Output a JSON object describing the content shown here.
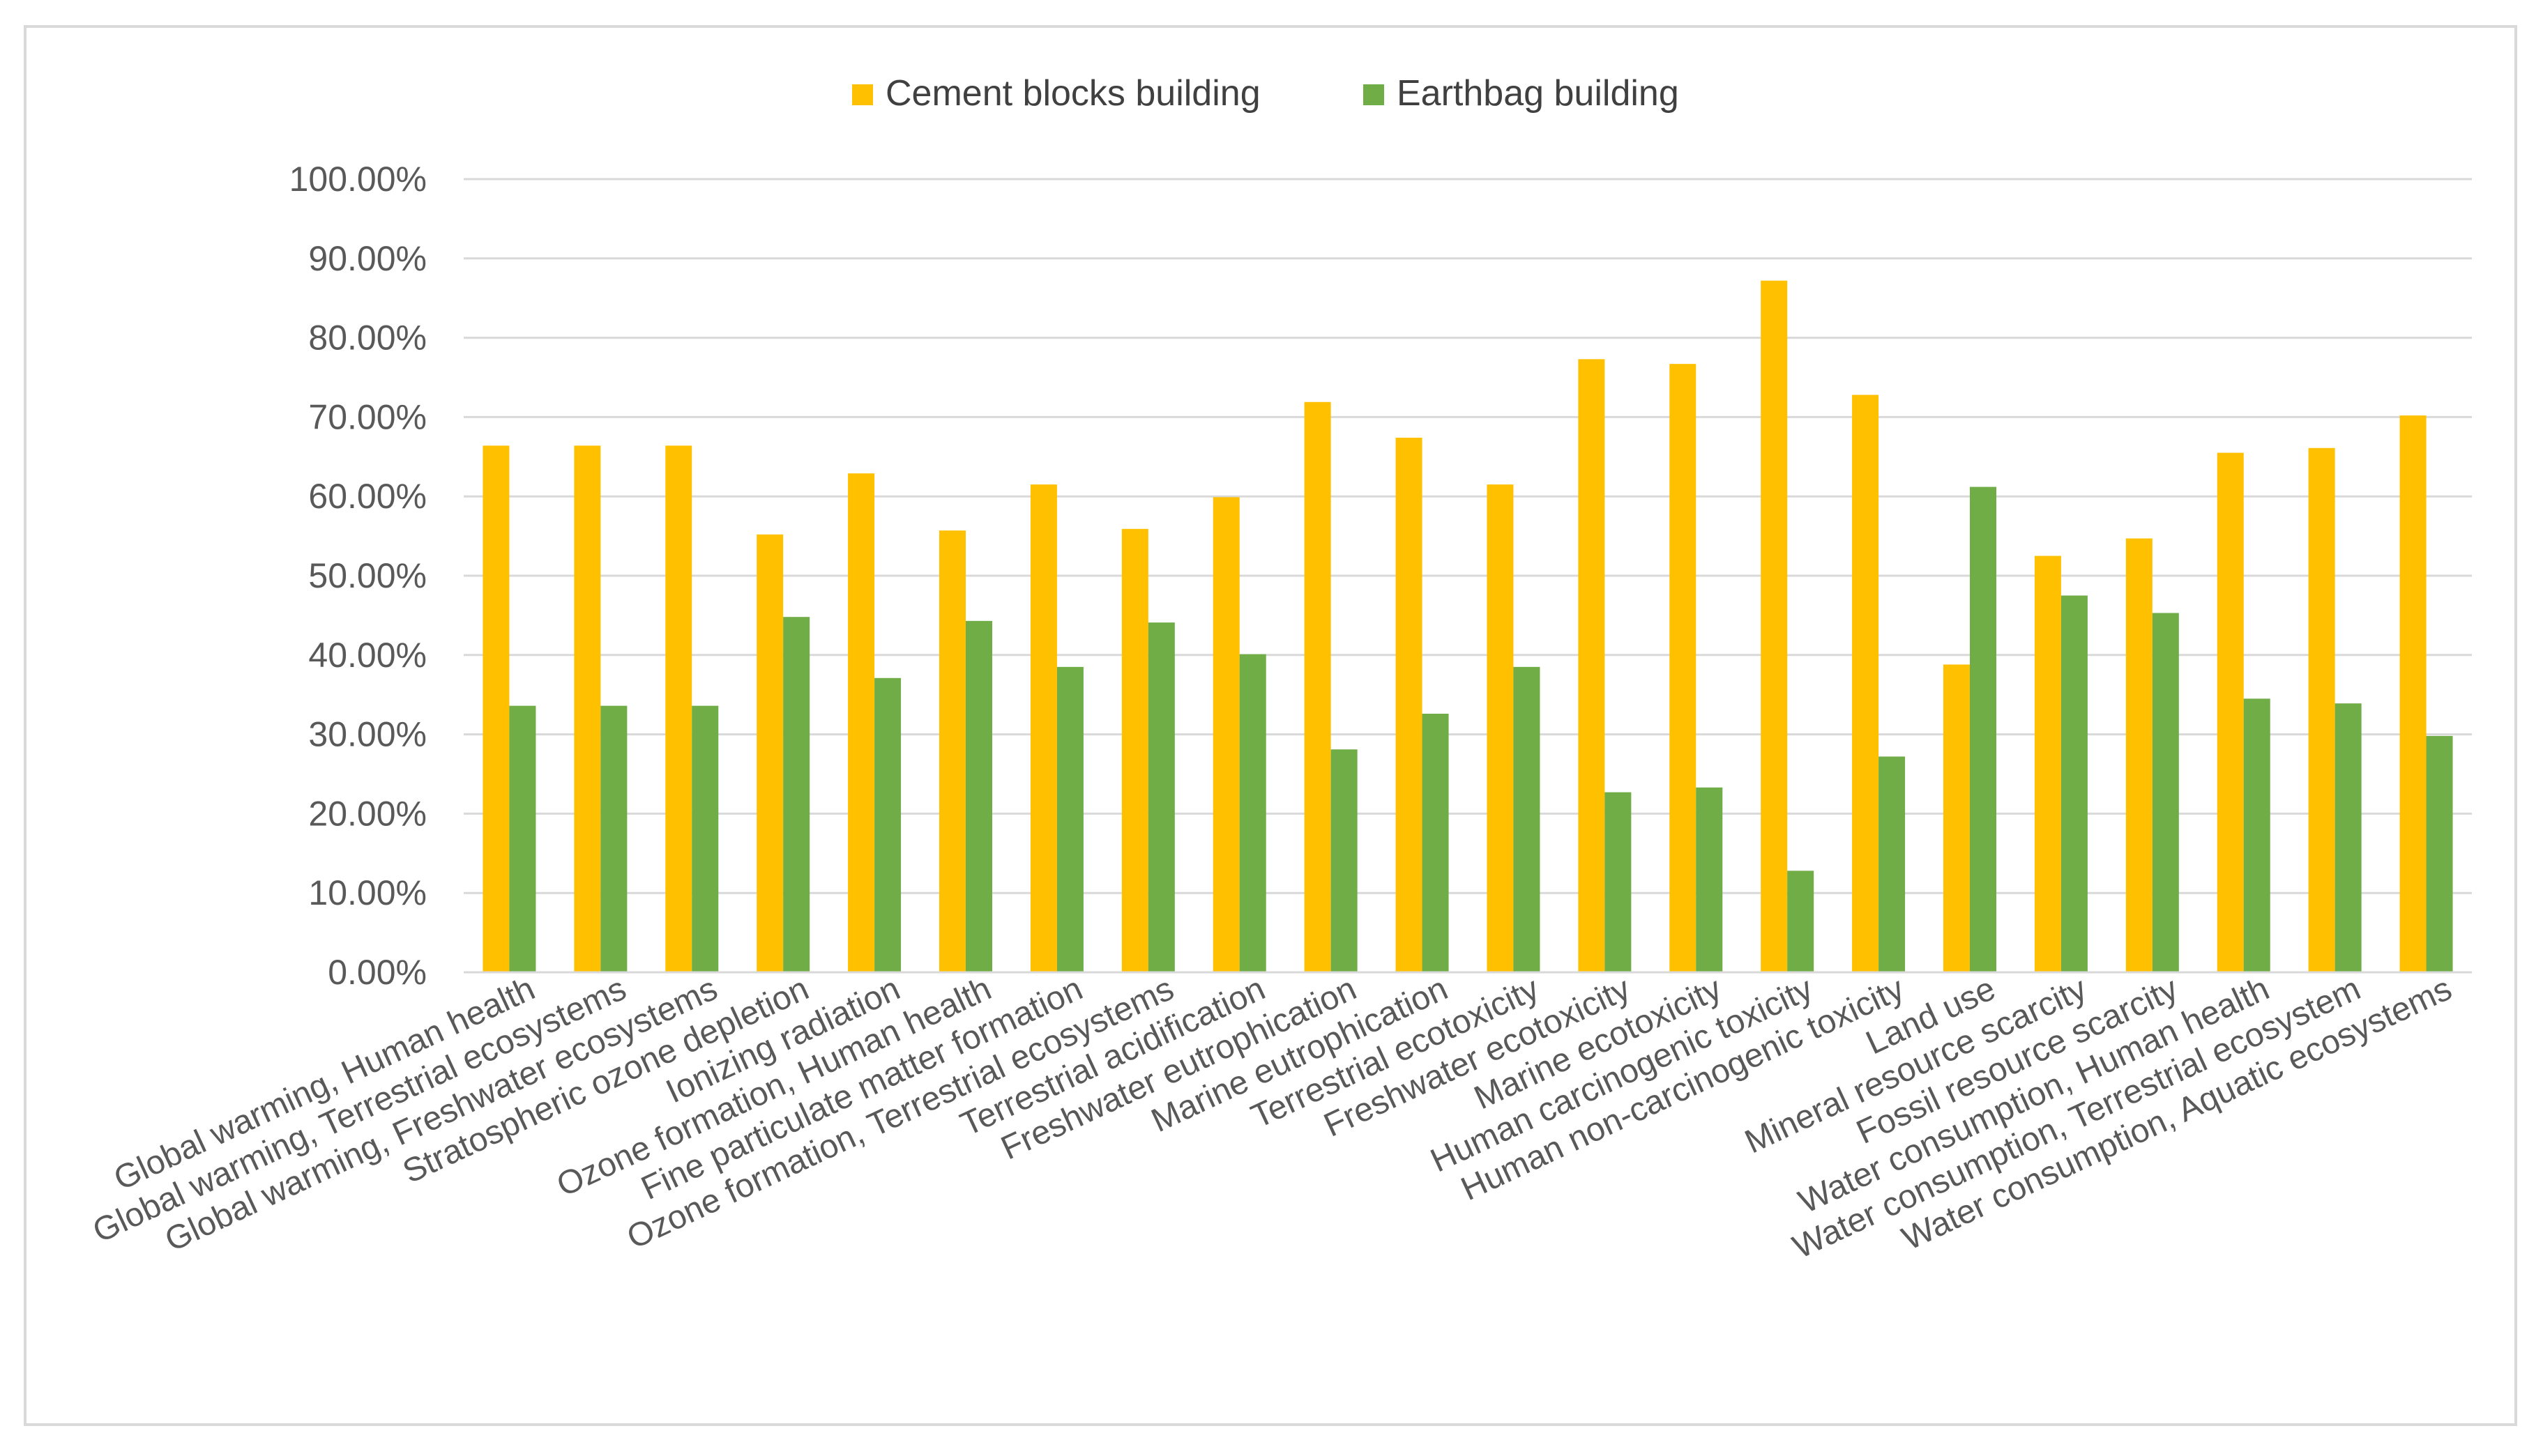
{
  "chart_data": {
    "type": "bar",
    "title": "",
    "xlabel": "",
    "ylabel": "",
    "ylim": [
      0,
      100
    ],
    "yticks": [
      "0.00%",
      "10.00%",
      "20.00%",
      "30.00%",
      "40.00%",
      "50.00%",
      "60.00%",
      "70.00%",
      "80.00%",
      "90.00%",
      "100.00%"
    ],
    "legend_position": "top-center",
    "grid": true,
    "categories": [
      "Global warming, Human health",
      "Global warming, Terrestrial ecosystems",
      "Global warming, Freshwater ecosystems",
      "Stratospheric ozone depletion",
      "Ionizing radiation",
      "Ozone formation, Human health",
      "Fine particulate matter formation",
      "Ozone formation, Terrestrial ecosystems",
      "Terrestrial acidification",
      "Freshwater eutrophication",
      "Marine eutrophication",
      "Terrestrial ecotoxicity",
      "Freshwater ecotoxicity",
      "Marine ecotoxicity",
      "Human carcinogenic toxicity",
      "Human non-carcinogenic toxicity",
      "Land use",
      "Mineral resource scarcity",
      "Fossil resource scarcity",
      "Water consumption, Human health",
      "Water consumption, Terrestrial ecosystem",
      "Water consumption, Aquatic ecosystems"
    ],
    "series": [
      {
        "name": "Cement blocks building",
        "color": "#FFC000",
        "values": [
          66.4,
          66.4,
          66.4,
          55.2,
          62.9,
          55.7,
          61.5,
          55.9,
          59.9,
          71.9,
          67.4,
          61.5,
          77.3,
          76.7,
          87.2,
          72.8,
          38.8,
          52.5,
          54.7,
          65.5,
          66.1,
          70.2
        ]
      },
      {
        "name": "Earthbag building",
        "color": "#70AD47",
        "values": [
          33.6,
          33.6,
          33.6,
          44.8,
          37.1,
          44.3,
          38.5,
          44.1,
          40.1,
          28.1,
          32.6,
          38.5,
          22.7,
          23.3,
          12.8,
          27.2,
          61.2,
          47.5,
          45.3,
          34.5,
          33.9,
          29.8
        ]
      }
    ]
  }
}
